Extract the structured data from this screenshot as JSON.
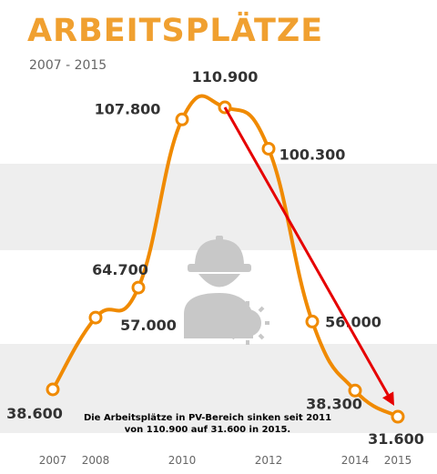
{
  "header": {
    "title": "ARBEITSPLÄTZE",
    "subtitle": "2007 - 2015"
  },
  "chart_data": {
    "type": "line",
    "title": "ARBEITSPLÄTZE",
    "subtitle": "2007 - 2015",
    "x": [
      2007,
      2008,
      2009,
      2010,
      2011,
      2012,
      2013,
      2014,
      2015
    ],
    "y": [
      38600,
      57000,
      64700,
      107800,
      110900,
      100300,
      56000,
      38300,
      31600
    ],
    "value_labels": [
      "38.600",
      "57.000",
      "64.700",
      "107.800",
      "110.900",
      "100.300",
      "56.000",
      "38.300",
      "31.600"
    ],
    "x_tick_labels": [
      {
        "year": 2007,
        "label": "2007"
      },
      {
        "year": 2008,
        "label": "2008"
      },
      {
        "year": 2010,
        "label": "2010"
      },
      {
        "year": 2012,
        "label": "2012"
      },
      {
        "year": 2014,
        "label": "2014"
      },
      {
        "year": 2015,
        "label": "2015"
      }
    ],
    "grid": false,
    "line_color": "#f08a00",
    "annotation": {
      "text_lines": [
        "Die Arbeitsplätze in PV-Bereich sinken seit 2011",
        "von 110.900 auf 31.600 in 2015."
      ],
      "arrow_color": "#e60000",
      "arrow_from_year": 2011,
      "arrow_to_year": 2015
    },
    "icon": "worker-sun-icon"
  }
}
